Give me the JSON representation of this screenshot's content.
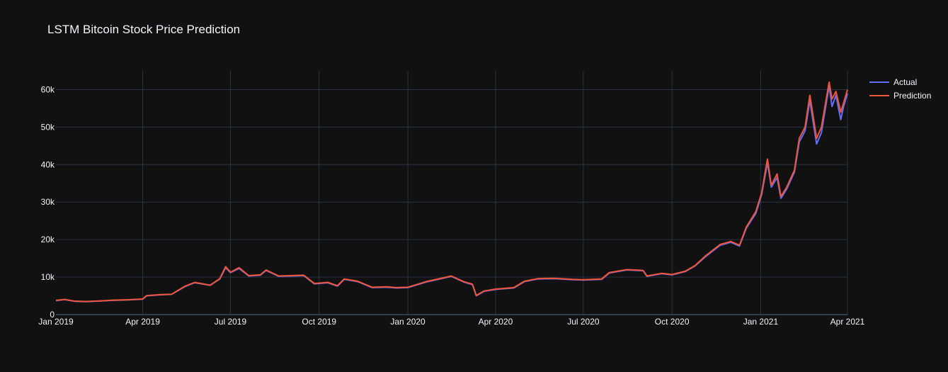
{
  "title": "LSTM Bitcoin Stock Price Prediction",
  "colors": {
    "background": "#111111",
    "grid": "#283442",
    "text": "#f2f5fa",
    "actual": "#636efa",
    "prediction": "#ef553b"
  },
  "chart_data": {
    "type": "line",
    "title": "LSTM Bitcoin Stock Price Prediction",
    "xlabel": "",
    "ylabel": "",
    "grid": true,
    "legend_position": "top-right",
    "xlim": [
      "2019-01-01",
      "2021-04-01"
    ],
    "ylim": [
      0,
      65000
    ],
    "x_ticks": [
      {
        "date": "2019-01-01",
        "label": "Jan 2019"
      },
      {
        "date": "2019-04-01",
        "label": "Apr 2019"
      },
      {
        "date": "2019-07-01",
        "label": "Jul 2019"
      },
      {
        "date": "2019-10-01",
        "label": "Oct 2019"
      },
      {
        "date": "2020-01-01",
        "label": "Jan 2020"
      },
      {
        "date": "2020-04-01",
        "label": "Apr 2020"
      },
      {
        "date": "2020-07-01",
        "label": "Jul 2020"
      },
      {
        "date": "2020-10-01",
        "label": "Oct 2020"
      },
      {
        "date": "2021-01-01",
        "label": "Jan 2021"
      },
      {
        "date": "2021-04-01",
        "label": "Apr 2021"
      }
    ],
    "y_ticks": [
      {
        "value": 0,
        "label": "0"
      },
      {
        "value": 10000,
        "label": "10k"
      },
      {
        "value": 20000,
        "label": "20k"
      },
      {
        "value": 30000,
        "label": "30k"
      },
      {
        "value": 40000,
        "label": "40k"
      },
      {
        "value": 50000,
        "label": "50k"
      },
      {
        "value": 60000,
        "label": "60k"
      }
    ],
    "series": [
      {
        "name": "Actual",
        "color": "#636efa",
        "points": [
          [
            "2019-01-01",
            3700
          ],
          [
            "2019-01-10",
            4000
          ],
          [
            "2019-01-20",
            3550
          ],
          [
            "2019-02-01",
            3450
          ],
          [
            "2019-02-15",
            3600
          ],
          [
            "2019-03-01",
            3800
          ],
          [
            "2019-03-15",
            3900
          ],
          [
            "2019-04-01",
            4100
          ],
          [
            "2019-04-05",
            5000
          ],
          [
            "2019-04-20",
            5300
          ],
          [
            "2019-05-01",
            5400
          ],
          [
            "2019-05-15",
            7500
          ],
          [
            "2019-05-25",
            8500
          ],
          [
            "2019-06-10",
            7800
          ],
          [
            "2019-06-20",
            9500
          ],
          [
            "2019-06-26",
            12500
          ],
          [
            "2019-07-01",
            11200
          ],
          [
            "2019-07-10",
            12300
          ],
          [
            "2019-07-20",
            10300
          ],
          [
            "2019-08-01",
            10500
          ],
          [
            "2019-08-07",
            11800
          ],
          [
            "2019-08-20",
            10200
          ],
          [
            "2019-09-01",
            10300
          ],
          [
            "2019-09-15",
            10400
          ],
          [
            "2019-09-26",
            8200
          ],
          [
            "2019-10-10",
            8500
          ],
          [
            "2019-10-20",
            7600
          ],
          [
            "2019-10-27",
            9400
          ],
          [
            "2019-11-10",
            8800
          ],
          [
            "2019-11-25",
            7200
          ],
          [
            "2019-12-10",
            7300
          ],
          [
            "2019-12-20",
            7100
          ],
          [
            "2020-01-01",
            7200
          ],
          [
            "2020-01-20",
            8700
          ],
          [
            "2020-02-10",
            9900
          ],
          [
            "2020-02-15",
            10200
          ],
          [
            "2020-02-28",
            8700
          ],
          [
            "2020-03-08",
            8000
          ],
          [
            "2020-03-12",
            5000
          ],
          [
            "2020-03-20",
            6200
          ],
          [
            "2020-04-01",
            6700
          ],
          [
            "2020-04-20",
            7100
          ],
          [
            "2020-05-01",
            8800
          ],
          [
            "2020-05-15",
            9500
          ],
          [
            "2020-06-01",
            9600
          ],
          [
            "2020-06-20",
            9300
          ],
          [
            "2020-07-01",
            9200
          ],
          [
            "2020-07-20",
            9400
          ],
          [
            "2020-07-28",
            11100
          ],
          [
            "2020-08-15",
            11900
          ],
          [
            "2020-09-01",
            11700
          ],
          [
            "2020-09-05",
            10200
          ],
          [
            "2020-09-20",
            10900
          ],
          [
            "2020-10-01",
            10600
          ],
          [
            "2020-10-15",
            11500
          ],
          [
            "2020-10-25",
            13000
          ],
          [
            "2020-11-05",
            15500
          ],
          [
            "2020-11-20",
            18500
          ],
          [
            "2020-12-01",
            19300
          ],
          [
            "2020-12-10",
            18300
          ],
          [
            "2020-12-17",
            23000
          ],
          [
            "2020-12-27",
            27000
          ],
          [
            "2021-01-02",
            32000
          ],
          [
            "2021-01-08",
            40500
          ],
          [
            "2021-01-12",
            34000
          ],
          [
            "2021-01-18",
            36500
          ],
          [
            "2021-01-22",
            31000
          ],
          [
            "2021-01-28",
            33500
          ],
          [
            "2021-02-05",
            38000
          ],
          [
            "2021-02-10",
            46000
          ],
          [
            "2021-02-16",
            49000
          ],
          [
            "2021-02-21",
            57000
          ],
          [
            "2021-02-28",
            45500
          ],
          [
            "2021-03-05",
            48500
          ],
          [
            "2021-03-13",
            61000
          ],
          [
            "2021-03-16",
            55500
          ],
          [
            "2021-03-20",
            58500
          ],
          [
            "2021-03-25",
            52000
          ],
          [
            "2021-03-28",
            55500
          ],
          [
            "2021-04-01",
            59000
          ]
        ]
      },
      {
        "name": "Prediction",
        "color": "#ef553b",
        "points": [
          [
            "2019-01-01",
            3800
          ],
          [
            "2019-01-10",
            4050
          ],
          [
            "2019-01-20",
            3600
          ],
          [
            "2019-02-01",
            3500
          ],
          [
            "2019-02-15",
            3650
          ],
          [
            "2019-03-01",
            3850
          ],
          [
            "2019-03-15",
            3950
          ],
          [
            "2019-04-01",
            4150
          ],
          [
            "2019-04-05",
            5050
          ],
          [
            "2019-04-20",
            5350
          ],
          [
            "2019-05-01",
            5450
          ],
          [
            "2019-05-15",
            7600
          ],
          [
            "2019-05-25",
            8600
          ],
          [
            "2019-06-10",
            7850
          ],
          [
            "2019-06-20",
            9600
          ],
          [
            "2019-06-26",
            12800
          ],
          [
            "2019-07-01",
            11300
          ],
          [
            "2019-07-10",
            12500
          ],
          [
            "2019-07-20",
            10400
          ],
          [
            "2019-08-01",
            10600
          ],
          [
            "2019-08-07",
            11900
          ],
          [
            "2019-08-20",
            10300
          ],
          [
            "2019-09-01",
            10400
          ],
          [
            "2019-09-15",
            10500
          ],
          [
            "2019-09-26",
            8300
          ],
          [
            "2019-10-10",
            8600
          ],
          [
            "2019-10-20",
            7700
          ],
          [
            "2019-10-27",
            9500
          ],
          [
            "2019-11-10",
            8900
          ],
          [
            "2019-11-25",
            7300
          ],
          [
            "2019-12-10",
            7400
          ],
          [
            "2019-12-20",
            7200
          ],
          [
            "2020-01-01",
            7300
          ],
          [
            "2020-01-20",
            8800
          ],
          [
            "2020-02-10",
            10000
          ],
          [
            "2020-02-15",
            10300
          ],
          [
            "2020-02-28",
            8800
          ],
          [
            "2020-03-08",
            8100
          ],
          [
            "2020-03-12",
            5100
          ],
          [
            "2020-03-20",
            6300
          ],
          [
            "2020-04-01",
            6800
          ],
          [
            "2020-04-20",
            7200
          ],
          [
            "2020-05-01",
            8900
          ],
          [
            "2020-05-15",
            9600
          ],
          [
            "2020-06-01",
            9700
          ],
          [
            "2020-06-20",
            9400
          ],
          [
            "2020-07-01",
            9300
          ],
          [
            "2020-07-20",
            9500
          ],
          [
            "2020-07-28",
            11200
          ],
          [
            "2020-08-15",
            12000
          ],
          [
            "2020-09-01",
            11800
          ],
          [
            "2020-09-05",
            10300
          ],
          [
            "2020-09-20",
            11000
          ],
          [
            "2020-10-01",
            10700
          ],
          [
            "2020-10-15",
            11600
          ],
          [
            "2020-10-25",
            13100
          ],
          [
            "2020-11-05",
            15700
          ],
          [
            "2020-11-20",
            18700
          ],
          [
            "2020-12-01",
            19500
          ],
          [
            "2020-12-10",
            18500
          ],
          [
            "2020-12-17",
            23300
          ],
          [
            "2020-12-27",
            27500
          ],
          [
            "2021-01-02",
            32500
          ],
          [
            "2021-01-08",
            41500
          ],
          [
            "2021-01-12",
            34500
          ],
          [
            "2021-01-18",
            37500
          ],
          [
            "2021-01-22",
            31500
          ],
          [
            "2021-01-28",
            34000
          ],
          [
            "2021-02-05",
            38500
          ],
          [
            "2021-02-10",
            47000
          ],
          [
            "2021-02-16",
            50000
          ],
          [
            "2021-02-21",
            58500
          ],
          [
            "2021-02-28",
            47000
          ],
          [
            "2021-03-05",
            50000
          ],
          [
            "2021-03-13",
            62000
          ],
          [
            "2021-03-16",
            57500
          ],
          [
            "2021-03-20",
            59500
          ],
          [
            "2021-03-25",
            54000
          ],
          [
            "2021-03-28",
            56500
          ],
          [
            "2021-04-01",
            60000
          ]
        ]
      }
    ]
  }
}
